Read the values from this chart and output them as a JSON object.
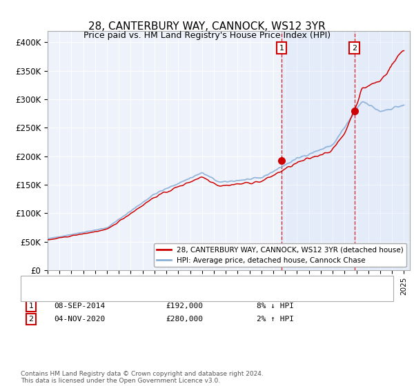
{
  "title": "28, CANTERBURY WAY, CANNOCK, WS12 3YR",
  "subtitle": "Price paid vs. HM Land Registry's House Price Index (HPI)",
  "ylabel_ticks": [
    "£0",
    "£50K",
    "£100K",
    "£150K",
    "£200K",
    "£250K",
    "£300K",
    "£350K",
    "£400K"
  ],
  "ylim": [
    0,
    420000
  ],
  "xlim_start": 1995.0,
  "xlim_end": 2025.5,
  "background_color": "#ffffff",
  "plot_bg_color": "#eef2fb",
  "grid_color": "#ffffff",
  "hpi_color": "#8ab0d8",
  "price_color": "#cc0000",
  "sale1_x": 2014.69,
  "sale1_y": 192000,
  "sale2_x": 2020.84,
  "sale2_y": 280000,
  "sale1_label": "1",
  "sale2_label": "2",
  "legend_line1": "28, CANTERBURY WAY, CANNOCK, WS12 3YR (detached house)",
  "legend_line2": "HPI: Average price, detached house, Cannock Chase",
  "table_row1_num": "1",
  "table_row1_date": "08-SEP-2014",
  "table_row1_price": "£192,000",
  "table_row1_hpi": "8% ↓ HPI",
  "table_row2_num": "2",
  "table_row2_date": "04-NOV-2020",
  "table_row2_price": "£280,000",
  "table_row2_hpi": "2% ↑ HPI",
  "footer": "Contains HM Land Registry data © Crown copyright and database right 2024.\nThis data is licensed under the Open Government Licence v3.0."
}
